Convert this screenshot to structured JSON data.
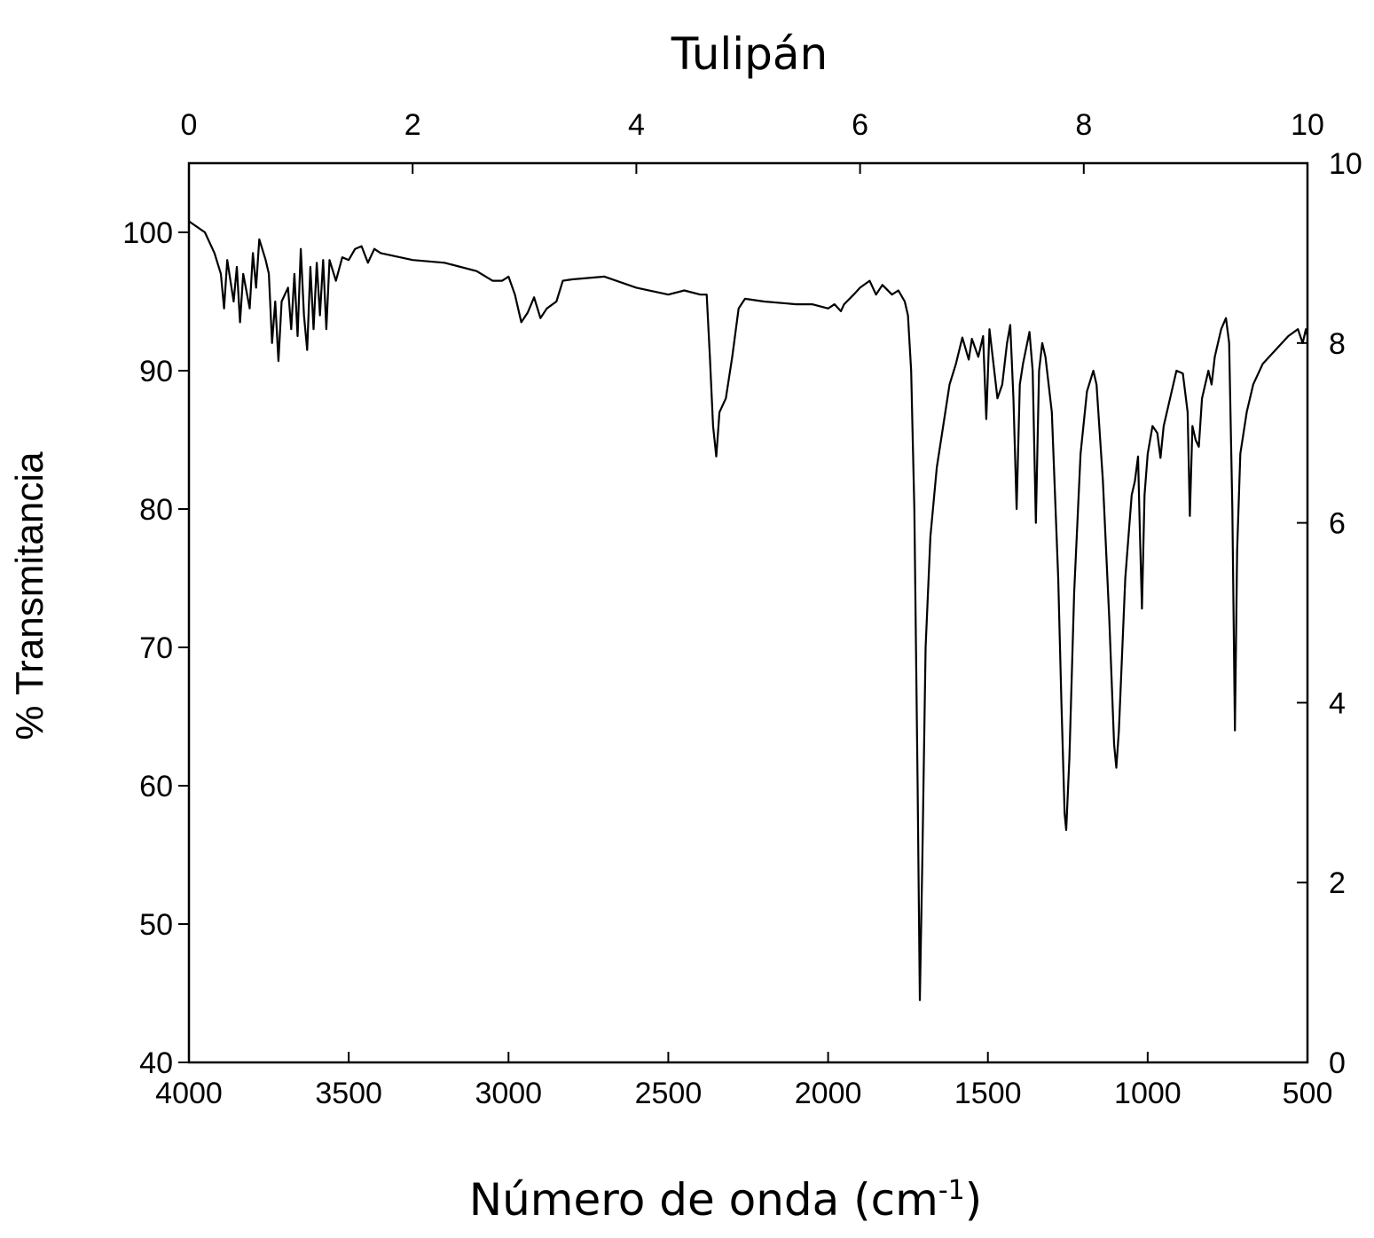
{
  "chart_data": {
    "type": "line",
    "title": "Tulipán",
    "x_label": [
      "Número de onda (cm",
      "-1",
      ")"
    ],
    "y_label": "% Transmitancia",
    "x": [
      4000,
      3950,
      3920,
      3900,
      3890,
      3880,
      3860,
      3850,
      3840,
      3830,
      3810,
      3800,
      3790,
      3780,
      3760,
      3750,
      3740,
      3730,
      3720,
      3710,
      3690,
      3680,
      3670,
      3660,
      3650,
      3640,
      3630,
      3620,
      3610,
      3600,
      3590,
      3580,
      3570,
      3560,
      3540,
      3520,
      3500,
      3480,
      3460,
      3440,
      3420,
      3400,
      3300,
      3200,
      3100,
      3050,
      3020,
      3000,
      2980,
      2960,
      2940,
      2920,
      2900,
      2880,
      2850,
      2830,
      2800,
      2700,
      2600,
      2500,
      2450,
      2400,
      2380,
      2370,
      2360,
      2350,
      2340,
      2320,
      2300,
      2280,
      2260,
      2200,
      2100,
      2050,
      2000,
      1980,
      1960,
      1950,
      1920,
      1900,
      1870,
      1850,
      1830,
      1800,
      1780,
      1760,
      1750,
      1740,
      1730,
      1720,
      1713,
      1705,
      1695,
      1680,
      1660,
      1640,
      1620,
      1600,
      1580,
      1560,
      1550,
      1530,
      1515,
      1505,
      1495,
      1480,
      1470,
      1455,
      1440,
      1430,
      1420,
      1410,
      1400,
      1390,
      1370,
      1360,
      1350,
      1340,
      1330,
      1320,
      1300,
      1280,
      1270,
      1260,
      1255,
      1245,
      1230,
      1210,
      1190,
      1170,
      1160,
      1140,
      1120,
      1105,
      1098,
      1090,
      1070,
      1050,
      1040,
      1030,
      1025,
      1018,
      1010,
      1000,
      985,
      970,
      960,
      950,
      930,
      910,
      890,
      875,
      868,
      860,
      850,
      840,
      830,
      810,
      800,
      790,
      770,
      755,
      745,
      735,
      727,
      720,
      710,
      690,
      670,
      640,
      600,
      560,
      530,
      515,
      505,
      500
    ],
    "series": [
      {
        "color": "#000000",
        "values": [
          100.8,
          100,
          98.5,
          97,
          94.5,
          98,
          95,
          97.5,
          93.5,
          97,
          94.5,
          98.5,
          96,
          99.5,
          98,
          97,
          92,
          95,
          90.7,
          95,
          96,
          93,
          97,
          92.5,
          98.8,
          94,
          91.5,
          97.5,
          93,
          97.8,
          94,
          98,
          93,
          98,
          96.5,
          98.2,
          98,
          98.8,
          99,
          97.8,
          98.8,
          98.5,
          98,
          97.8,
          97.2,
          96.5,
          96.5,
          96.8,
          95.5,
          93.5,
          94.2,
          95.3,
          93.8,
          94.5,
          95,
          96.5,
          96.6,
          96.8,
          96,
          95.5,
          95.8,
          95.5,
          95.5,
          91,
          86,
          83.8,
          87,
          88,
          91,
          94.5,
          95.2,
          95,
          94.8,
          94.8,
          94.5,
          94.8,
          94.3,
          94.8,
          95.5,
          96,
          96.5,
          95.5,
          96.2,
          95.5,
          95.8,
          95,
          94,
          90,
          80,
          60,
          44.5,
          55,
          70,
          78,
          83,
          86,
          89,
          90.5,
          92.4,
          90.8,
          92.3,
          91,
          92.5,
          86.5,
          93,
          90,
          88,
          89,
          92,
          93.3,
          88,
          80,
          89,
          90.5,
          92.8,
          90,
          79,
          90,
          92,
          91,
          87,
          75,
          66,
          58,
          56.8,
          62,
          74,
          84,
          88.5,
          90,
          89,
          82,
          72,
          63,
          61.3,
          64,
          75,
          81,
          82,
          83.8,
          79,
          72.8,
          81,
          84,
          86,
          85.5,
          83.7,
          86,
          88,
          90,
          89.8,
          87,
          79.5,
          86,
          85,
          84.5,
          88,
          90,
          89,
          91,
          93,
          93.8,
          92,
          80,
          64,
          77,
          84,
          87,
          89,
          90.5,
          91.5,
          92.5,
          93,
          92,
          93,
          92.5
        ]
      }
    ],
    "xlim": [
      4000,
      500
    ],
    "xticks": [
      4000,
      3500,
      3000,
      2500,
      2000,
      1500,
      1000,
      500
    ],
    "ylim": [
      40,
      105
    ],
    "yticks": [
      40,
      50,
      60,
      70,
      80,
      90,
      100
    ],
    "x2lim": [
      0,
      10
    ],
    "x2ticks": [
      0,
      2,
      4,
      6,
      8,
      10
    ],
    "y2lim": [
      0,
      10
    ],
    "y2ticks": [
      0,
      2,
      4,
      6,
      8,
      10
    ]
  }
}
